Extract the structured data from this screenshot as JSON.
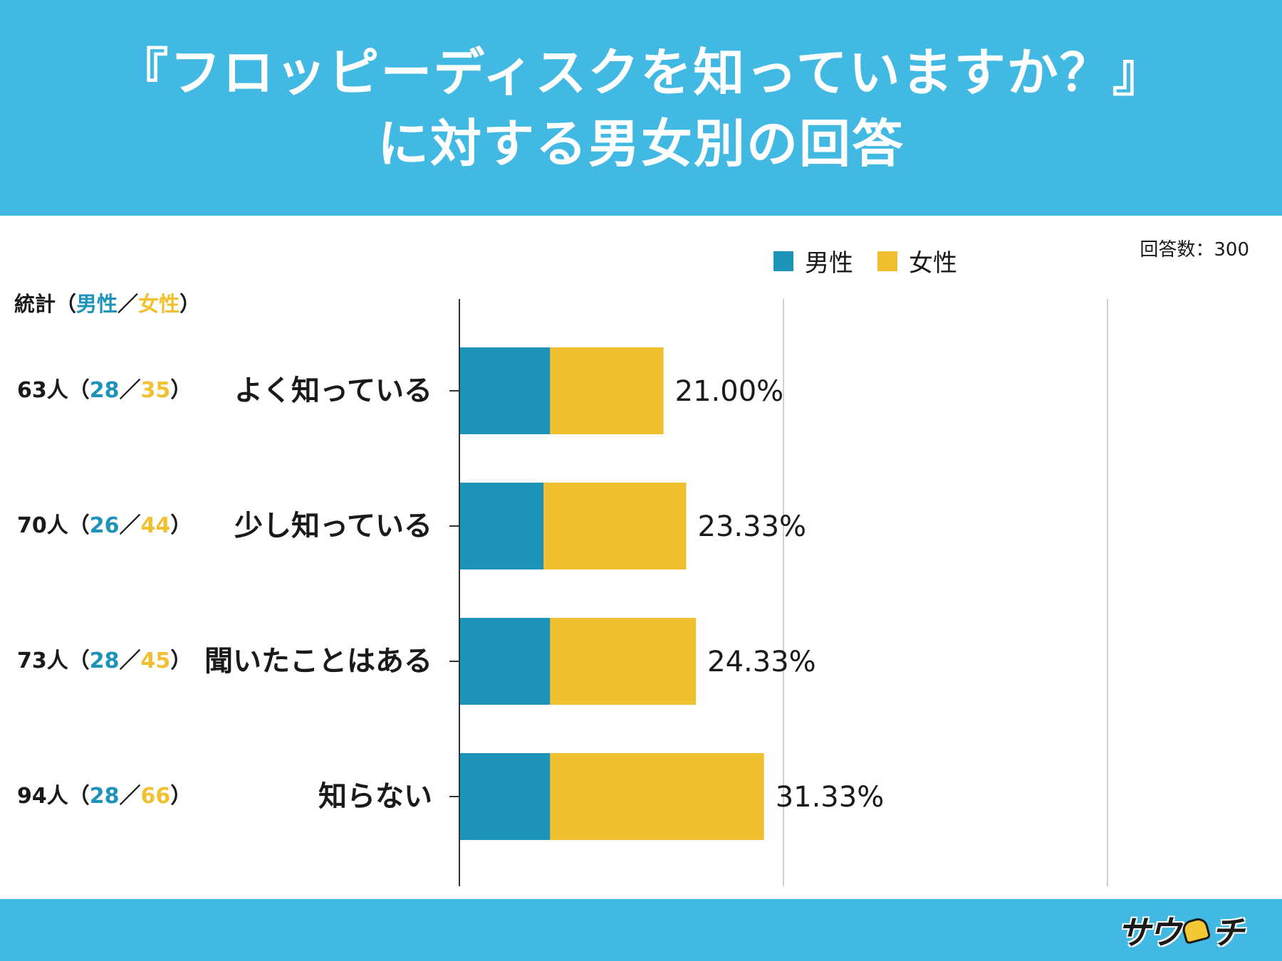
{
  "title": {
    "line1": "『フロッピーディスクを知っていますか？』",
    "line2": "に対する男女別の回答"
  },
  "response_count": "回答数：300",
  "stats_header": {
    "prefix": "統計（",
    "male": "男性",
    "sep": "／",
    "female": "女性",
    "suffix": "）"
  },
  "colors": {
    "male": "#1d92bb",
    "female": "#f0c030",
    "header": "#42b9e3"
  },
  "logo": {
    "text_a": "サウ",
    "text_b": "チ",
    "icon": "helmet-mascot-icon"
  },
  "chart_data": {
    "type": "bar",
    "orientation": "horizontal",
    "stacked": true,
    "categories": [
      "よく知っている",
      "少し知っている",
      "聞いたことはある",
      "知らない"
    ],
    "series": [
      {
        "name": "男性",
        "values": [
          28,
          26,
          28,
          28
        ],
        "color": "#1d92bb"
      },
      {
        "name": "女性",
        "values": [
          35,
          44,
          45,
          66
        ],
        "color": "#f0c030"
      }
    ],
    "totals": [
      63,
      70,
      73,
      94
    ],
    "total_labels": [
      "63人",
      "70人",
      "73人",
      "94人"
    ],
    "percent_labels": [
      "21.00%",
      "23.33%",
      "24.33%",
      "31.33%"
    ],
    "xlim": [
      0,
      200
    ],
    "gridlines": [
      100,
      200
    ],
    "legend_position": "top-right"
  }
}
